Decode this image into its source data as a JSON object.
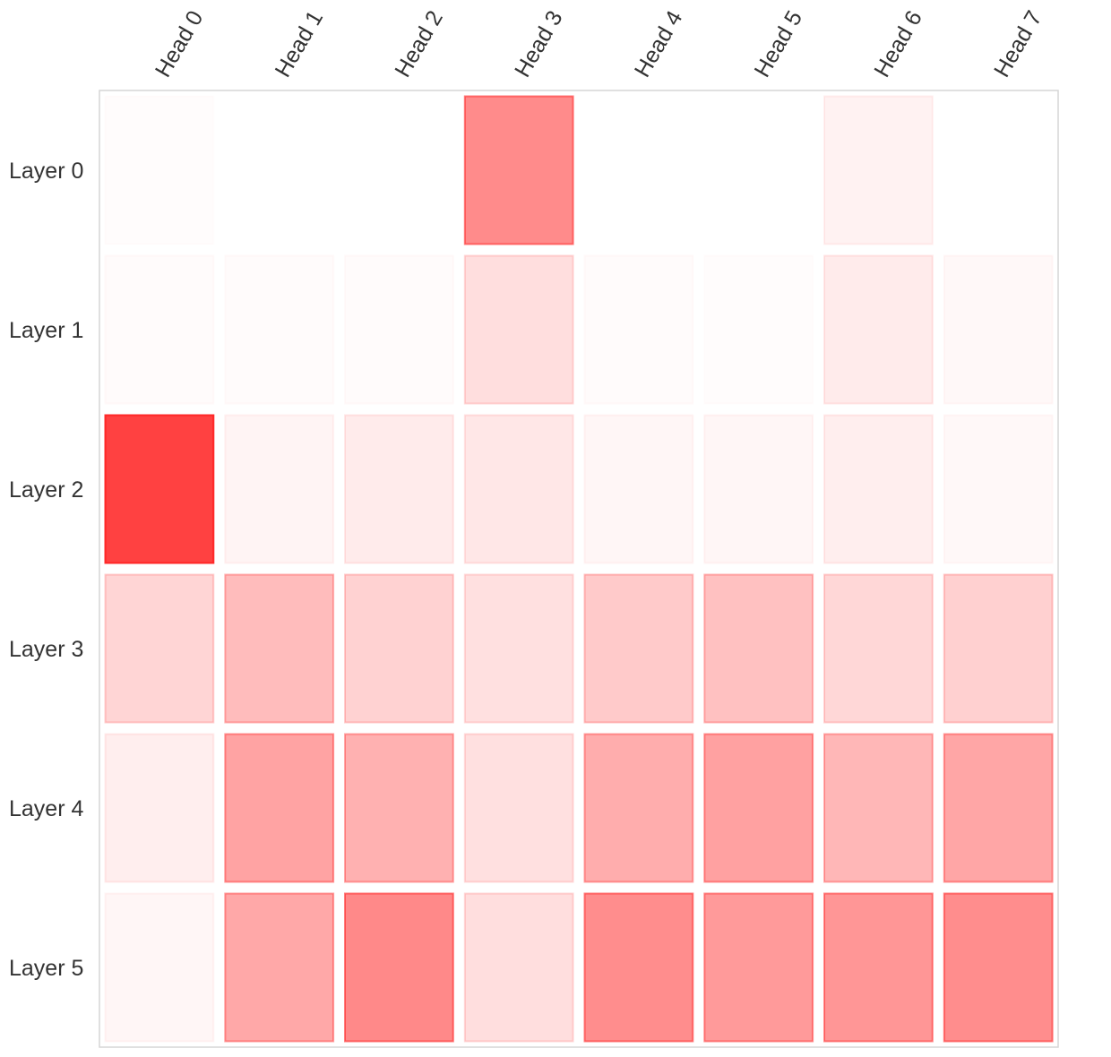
{
  "chart_data": {
    "type": "heatmap",
    "title": "",
    "xlabel": "",
    "ylabel": "",
    "color": "#ff2020",
    "columns": [
      "Head 0",
      "Head 1",
      "Head 2",
      "Head 3",
      "Head 4",
      "Head 5",
      "Head 6",
      "Head 7"
    ],
    "rows": [
      "Layer 0",
      "Layer 1",
      "Layer 2",
      "Layer 3",
      "Layer 4",
      "Layer 5"
    ],
    "values": [
      [
        0.01,
        0.0,
        0.0,
        0.52,
        0.0,
        0.0,
        0.06,
        0.0
      ],
      [
        0.02,
        0.02,
        0.02,
        0.15,
        0.02,
        0.01,
        0.09,
        0.03
      ],
      [
        0.85,
        0.05,
        0.09,
        0.11,
        0.04,
        0.04,
        0.08,
        0.03
      ],
      [
        0.19,
        0.3,
        0.2,
        0.14,
        0.24,
        0.28,
        0.18,
        0.21
      ],
      [
        0.08,
        0.41,
        0.35,
        0.14,
        0.37,
        0.42,
        0.32,
        0.4
      ],
      [
        0.04,
        0.39,
        0.53,
        0.15,
        0.51,
        0.45,
        0.47,
        0.51
      ]
    ],
    "grid": false,
    "legend": "none"
  }
}
